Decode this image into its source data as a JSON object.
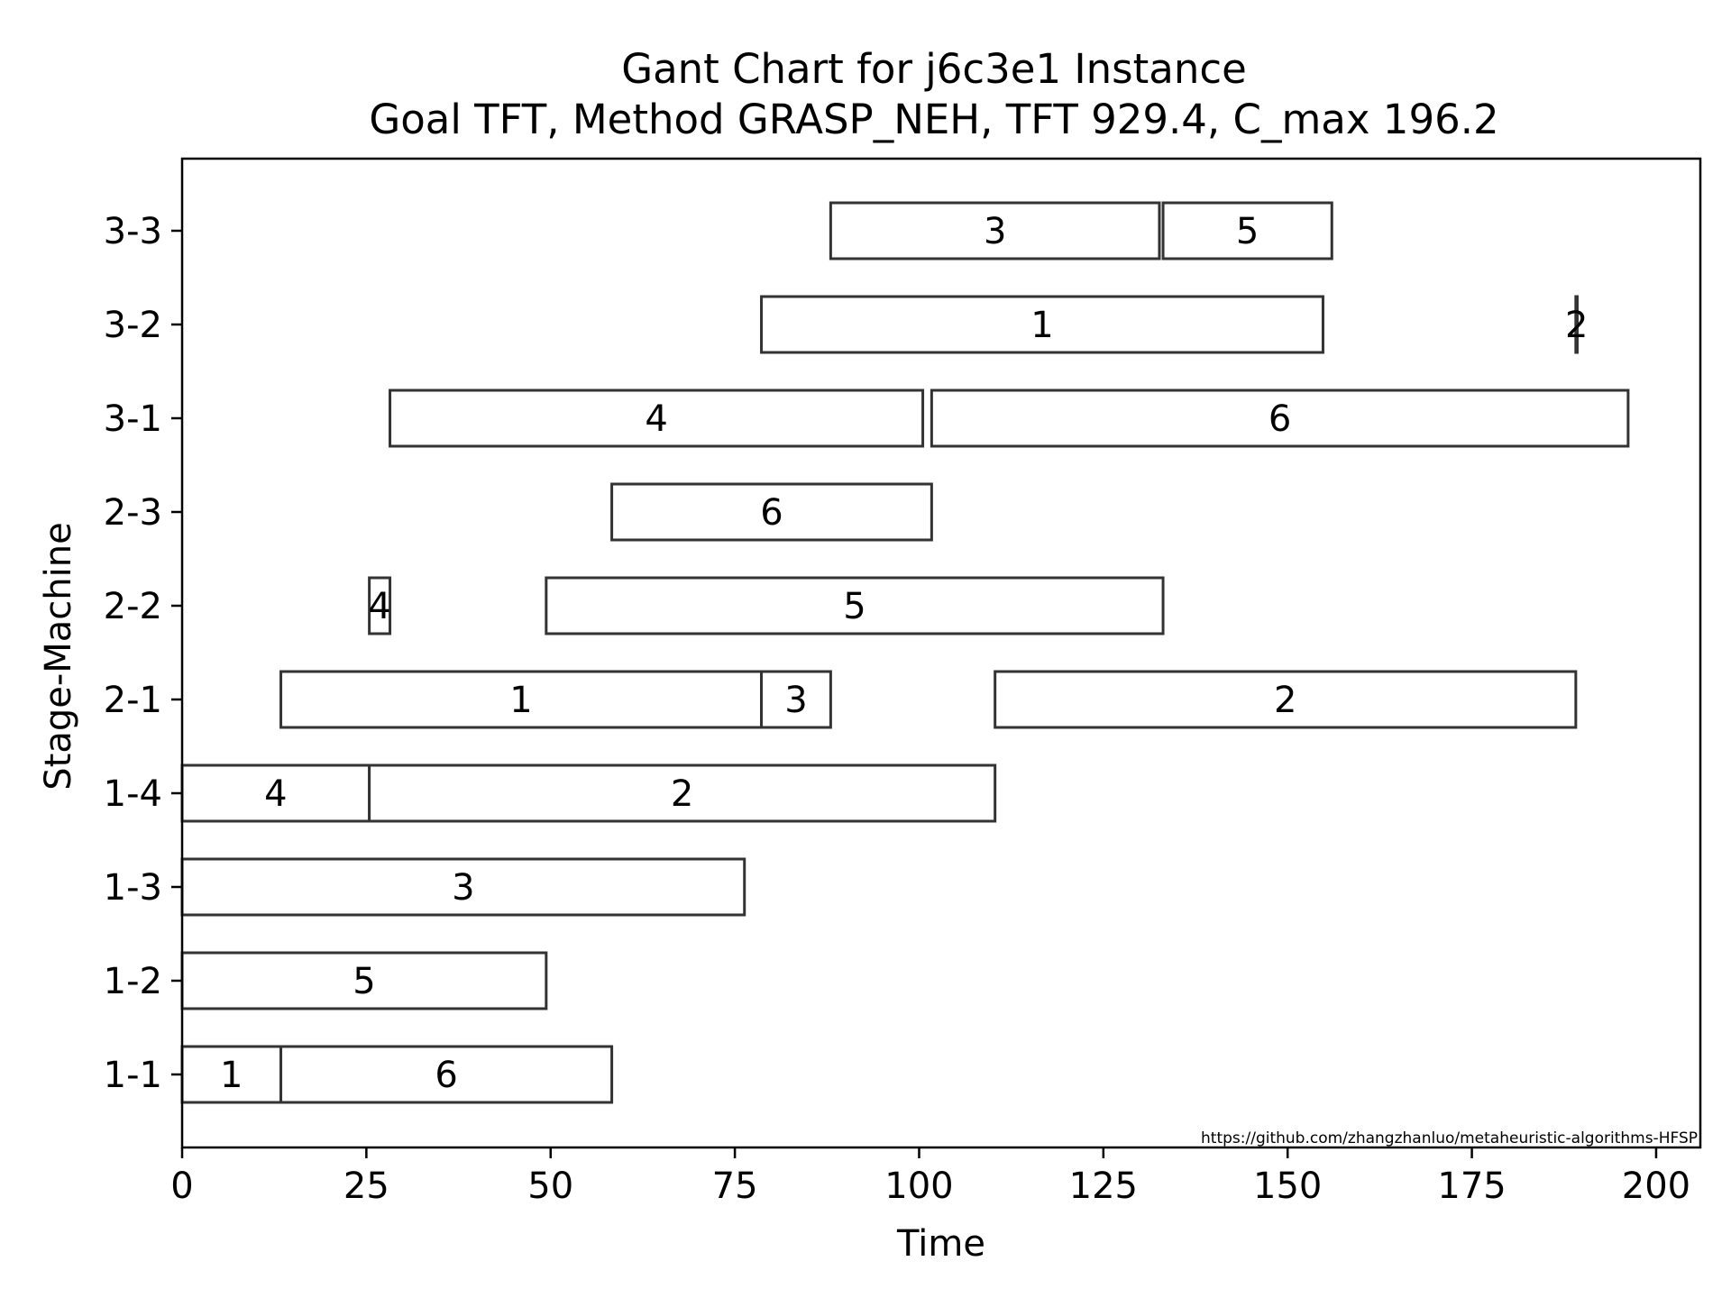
{
  "chart_data": {
    "type": "gantt",
    "title": "Gant Chart for j6c3e1 Instance",
    "subtitle": "Goal TFT, Method GRASP_NEH, TFT 929.4, C_max 196.2",
    "xlabel": "Time",
    "ylabel": "Stage-Machine",
    "xlim": [
      0,
      206
    ],
    "x_ticks": [
      "0",
      "25",
      "50",
      "75",
      "100",
      "125",
      "150",
      "175",
      "200"
    ],
    "x_tick_values": [
      0,
      25,
      50,
      75,
      100,
      125,
      150,
      175,
      200
    ],
    "y_categories": [
      "1-1",
      "1-2",
      "1-3",
      "1-4",
      "2-1",
      "2-2",
      "2-3",
      "3-1",
      "3-2",
      "3-3"
    ],
    "grid": false,
    "bar_fill": "#ffffff",
    "bar_edge": "#333333",
    "tasks": [
      {
        "machine": "1-1",
        "job": "1",
        "start": 0,
        "end": 13.4
      },
      {
        "machine": "1-1",
        "job": "6",
        "start": 13.4,
        "end": 58.3
      },
      {
        "machine": "1-2",
        "job": "5",
        "start": 0,
        "end": 49.4
      },
      {
        "machine": "1-3",
        "job": "3",
        "start": 0,
        "end": 76.3
      },
      {
        "machine": "1-4",
        "job": "4",
        "start": 0,
        "end": 25.4
      },
      {
        "machine": "1-4",
        "job": "2",
        "start": 25.4,
        "end": 110.3
      },
      {
        "machine": "2-1",
        "job": "1",
        "start": 13.4,
        "end": 78.6
      },
      {
        "machine": "2-1",
        "job": "3",
        "start": 78.6,
        "end": 88.0
      },
      {
        "machine": "2-1",
        "job": "2",
        "start": 110.3,
        "end": 189.1
      },
      {
        "machine": "2-2",
        "job": "4",
        "start": 25.4,
        "end": 28.2
      },
      {
        "machine": "2-2",
        "job": "5",
        "start": 49.4,
        "end": 133.1
      },
      {
        "machine": "2-3",
        "job": "6",
        "start": 58.3,
        "end": 101.7
      },
      {
        "machine": "3-1",
        "job": "4",
        "start": 28.2,
        "end": 100.5
      },
      {
        "machine": "3-1",
        "job": "6",
        "start": 101.7,
        "end": 196.2
      },
      {
        "machine": "3-2",
        "job": "1",
        "start": 78.6,
        "end": 154.8
      },
      {
        "machine": "3-2",
        "job": "2",
        "start": 189.1,
        "end": 189.3
      },
      {
        "machine": "3-3",
        "job": "3",
        "start": 88.0,
        "end": 132.6
      },
      {
        "machine": "3-3",
        "job": "5",
        "start": 133.1,
        "end": 156.0
      }
    ],
    "annotation": "https://github.com/zhangzhanluo/metaheuristic-algorithms-HFSP"
  }
}
